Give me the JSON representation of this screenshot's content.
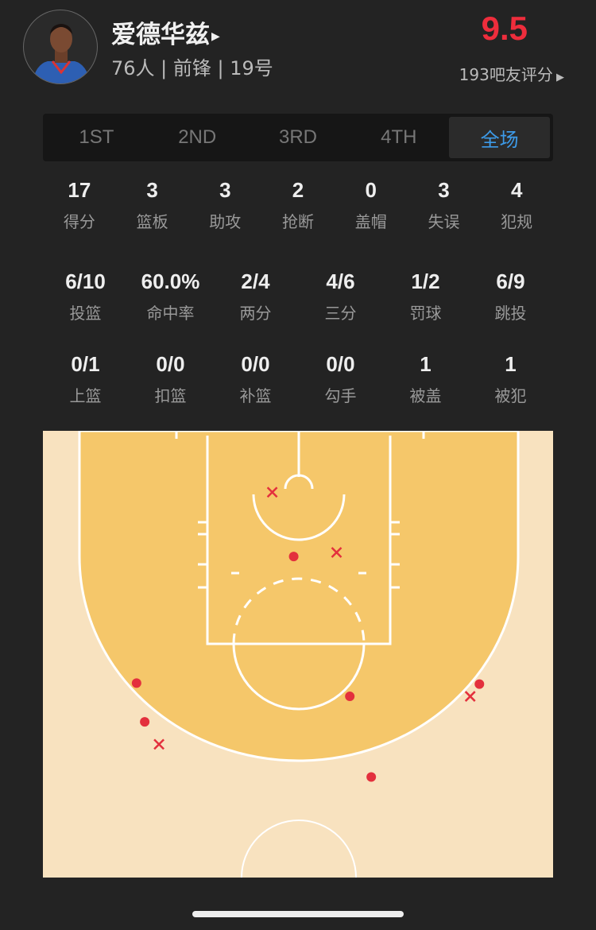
{
  "player": {
    "name": "爱德华兹",
    "team_info": "76人 | 前锋 | 19号",
    "rating": "9.5",
    "rating_count": "193吧友评分",
    "avatar_icon": "player-photo"
  },
  "tabs": [
    {
      "label": "1ST"
    },
    {
      "label": "2ND"
    },
    {
      "label": "3RD"
    },
    {
      "label": "4TH"
    },
    {
      "label": "全场",
      "active": true
    }
  ],
  "stats_row1": [
    {
      "v": "17",
      "l": "得分"
    },
    {
      "v": "3",
      "l": "篮板"
    },
    {
      "v": "3",
      "l": "助攻"
    },
    {
      "v": "2",
      "l": "抢断"
    },
    {
      "v": "0",
      "l": "盖帽"
    },
    {
      "v": "3",
      "l": "失误"
    },
    {
      "v": "4",
      "l": "犯规"
    }
  ],
  "stats_row2": [
    {
      "v": "6/10",
      "l": "投篮"
    },
    {
      "v": "60.0%",
      "l": "命中率"
    },
    {
      "v": "2/4",
      "l": "两分"
    },
    {
      "v": "4/6",
      "l": "三分"
    },
    {
      "v": "1/2",
      "l": "罚球"
    },
    {
      "v": "6/9",
      "l": "跳投"
    }
  ],
  "stats_row3": [
    {
      "v": "0/1",
      "l": "上篮"
    },
    {
      "v": "0/0",
      "l": "扣篮"
    },
    {
      "v": "0/0",
      "l": "补篮"
    },
    {
      "v": "0/0",
      "l": "勾手"
    },
    {
      "v": "1",
      "l": "被盖"
    },
    {
      "v": "1",
      "l": "被犯"
    }
  ],
  "colors": {
    "rating": "#ee2d3c",
    "active_tab": "#3d9be9",
    "made": "#e3303d",
    "missed": "#e3303d",
    "paint": "#f5c76a",
    "court": "#f8e2bf"
  },
  "shot_chart": {
    "units": "feet from basket (x: left-/right+, y: toward midcourt)",
    "shots": [
      {
        "result": "missed",
        "x": -2.6,
        "y": 1.5
      },
      {
        "result": "made",
        "x": -0.5,
        "y": 7.8
      },
      {
        "result": "missed",
        "x": 3.7,
        "y": 7.4
      },
      {
        "result": "made",
        "x": 5.0,
        "y": 21.5
      },
      {
        "result": "made",
        "x": -15.9,
        "y": 20.2
      },
      {
        "result": "made",
        "x": -15.1,
        "y": 24.0
      },
      {
        "result": "missed",
        "x": -13.7,
        "y": 26.2
      },
      {
        "result": "made",
        "x": 7.1,
        "y": 29.4
      },
      {
        "result": "made",
        "x": 17.7,
        "y": 20.3
      },
      {
        "result": "missed",
        "x": 16.8,
        "y": 21.5
      }
    ]
  }
}
